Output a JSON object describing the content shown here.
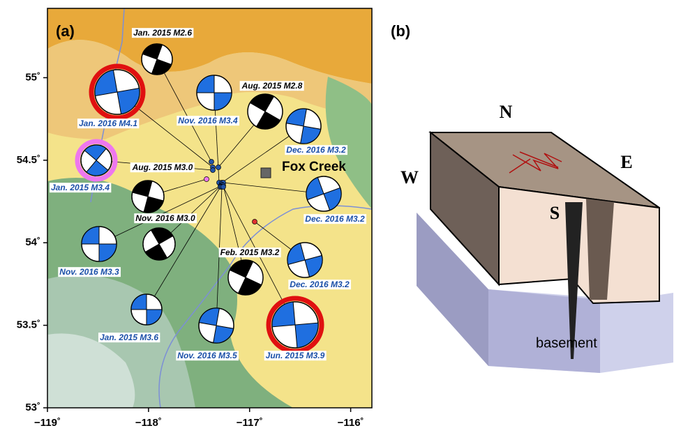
{
  "panel_a": {
    "label": "(a)",
    "xlim": [
      -119,
      -115.79
    ],
    "ylim": [
      53,
      55.42
    ],
    "xticks": [
      {
        "value": -119,
        "label": "−119˚"
      },
      {
        "value": -118,
        "label": "−118˚"
      },
      {
        "value": -117,
        "label": "−117˚"
      },
      {
        "value": -116,
        "label": "−116˚"
      }
    ],
    "yticks": [
      {
        "value": 53,
        "label": "53˚"
      },
      {
        "value": 53.5,
        "label": "53.5˚"
      },
      {
        "value": 54,
        "label": "54˚"
      },
      {
        "value": 54.5,
        "label": "54.5˚"
      },
      {
        "value": 55,
        "label": "55˚"
      }
    ],
    "town": "Fox Creek",
    "events": [
      "Jan. 2015 M2.6",
      "Jan. 2016 M4.1",
      "Aug. 2015 M2.8",
      "Nov. 2016 M3.4",
      "Dec. 2016 M3.2",
      "Jan. 2015 M3.4",
      "Aug. 2015 M3.0",
      "Dec. 2016 M3.2",
      "Nov. 2016 M3.0",
      "Nov. 2016 M3.3",
      "Feb. 2015 M3.2",
      "Dec. 2016 M3.2",
      "Jan. 2015 M3.6",
      "Nov. 2016 M3.5",
      "Jun. 2015 M3.9"
    ]
  },
  "panel_b": {
    "label": "(b)",
    "north": "N",
    "south": "S",
    "east": "E",
    "west": "W",
    "basement": "basement"
  }
}
